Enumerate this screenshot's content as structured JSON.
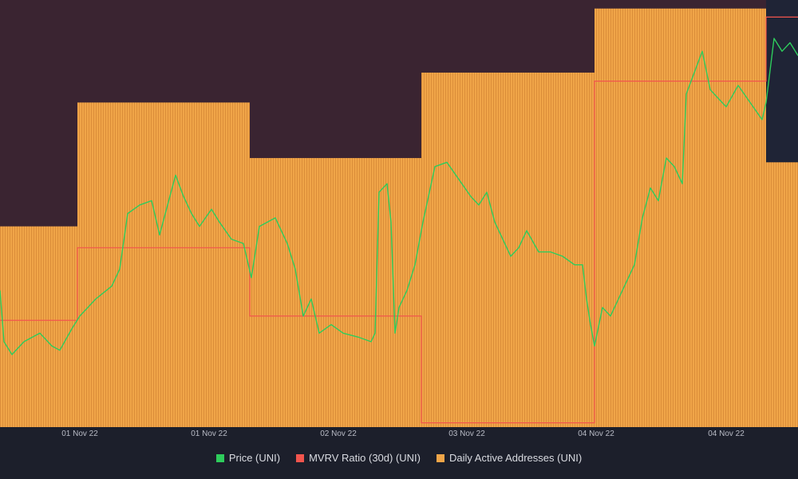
{
  "chart_data": {
    "type": "bar",
    "title": "",
    "x_ticks": [
      "01 Nov 22",
      "01 Nov 22",
      "02 Nov 22",
      "03 Nov 22",
      "04 Nov 22",
      "04 Nov 22"
    ],
    "ylim": [
      0,
      100
    ],
    "series": [
      {
        "name": "Daily Active Addresses (UNI)",
        "color": "#f0a548",
        "kind": "bar",
        "steps": [
          {
            "from": 0,
            "to": 0.097,
            "value": 47
          },
          {
            "from": 0.097,
            "to": 0.313,
            "value": 76
          },
          {
            "from": 0.313,
            "to": 0.528,
            "value": 63
          },
          {
            "from": 0.528,
            "to": 0.745,
            "value": 83
          },
          {
            "from": 0.745,
            "to": 0.96,
            "value": 98
          },
          {
            "from": 0.96,
            "to": 1,
            "value": 62
          }
        ]
      },
      {
        "name": "MVRV Ratio (30d) (UNI)",
        "color": "#f2554d",
        "kind": "step-line",
        "steps": [
          {
            "from": 0,
            "to": 0.097,
            "value": 25
          },
          {
            "from": 0.097,
            "to": 0.313,
            "value": 42
          },
          {
            "from": 0.313,
            "to": 0.528,
            "value": 26
          },
          {
            "from": 0.528,
            "to": 0.745,
            "value": 1
          },
          {
            "from": 0.745,
            "to": 0.96,
            "value": 81
          },
          {
            "from": 0.96,
            "to": 1,
            "value": 96
          }
        ]
      },
      {
        "name": "Price (UNI)",
        "color": "#2ecc5c",
        "kind": "line",
        "points": [
          [
            0,
            32
          ],
          [
            0.005,
            20
          ],
          [
            0.015,
            17
          ],
          [
            0.03,
            20
          ],
          [
            0.05,
            22
          ],
          [
            0.065,
            19
          ],
          [
            0.075,
            18
          ],
          [
            0.09,
            23
          ],
          [
            0.1,
            26
          ],
          [
            0.12,
            30
          ],
          [
            0.14,
            33
          ],
          [
            0.15,
            37
          ],
          [
            0.16,
            50
          ],
          [
            0.175,
            52
          ],
          [
            0.19,
            53
          ],
          [
            0.2,
            45
          ],
          [
            0.21,
            52
          ],
          [
            0.22,
            59
          ],
          [
            0.23,
            54
          ],
          [
            0.24,
            50
          ],
          [
            0.25,
            47
          ],
          [
            0.265,
            51
          ],
          [
            0.275,
            48
          ],
          [
            0.29,
            44
          ],
          [
            0.305,
            43
          ],
          [
            0.315,
            35
          ],
          [
            0.325,
            47
          ],
          [
            0.345,
            49
          ],
          [
            0.36,
            43
          ],
          [
            0.37,
            37
          ],
          [
            0.38,
            26
          ],
          [
            0.39,
            30
          ],
          [
            0.4,
            22
          ],
          [
            0.415,
            24
          ],
          [
            0.43,
            22
          ],
          [
            0.45,
            21
          ],
          [
            0.465,
            20
          ],
          [
            0.47,
            22
          ],
          [
            0.475,
            55
          ],
          [
            0.485,
            57
          ],
          [
            0.49,
            48
          ],
          [
            0.495,
            22
          ],
          [
            0.5,
            28
          ],
          [
            0.51,
            32
          ],
          [
            0.52,
            38
          ],
          [
            0.53,
            48
          ],
          [
            0.545,
            61
          ],
          [
            0.56,
            62
          ],
          [
            0.575,
            58
          ],
          [
            0.59,
            54
          ],
          [
            0.6,
            52
          ],
          [
            0.61,
            55
          ],
          [
            0.62,
            48
          ],
          [
            0.63,
            44
          ],
          [
            0.64,
            40
          ],
          [
            0.65,
            42
          ],
          [
            0.66,
            46
          ],
          [
            0.675,
            41
          ],
          [
            0.69,
            41
          ],
          [
            0.705,
            40
          ],
          [
            0.72,
            38
          ],
          [
            0.73,
            38
          ],
          [
            0.735,
            30
          ],
          [
            0.74,
            24
          ],
          [
            0.745,
            19
          ],
          [
            0.755,
            28
          ],
          [
            0.765,
            26
          ],
          [
            0.775,
            30
          ],
          [
            0.785,
            34
          ],
          [
            0.795,
            38
          ],
          [
            0.805,
            49
          ],
          [
            0.815,
            56
          ],
          [
            0.825,
            53
          ],
          [
            0.835,
            63
          ],
          [
            0.845,
            61
          ],
          [
            0.855,
            57
          ],
          [
            0.86,
            78
          ],
          [
            0.87,
            83
          ],
          [
            0.88,
            88
          ],
          [
            0.89,
            79
          ],
          [
            0.9,
            77
          ],
          [
            0.91,
            75
          ],
          [
            0.925,
            80
          ],
          [
            0.94,
            76
          ],
          [
            0.955,
            72
          ],
          [
            0.96,
            76
          ],
          [
            0.97,
            91
          ],
          [
            0.98,
            88
          ],
          [
            0.99,
            90
          ],
          [
            1,
            87
          ]
        ]
      }
    ],
    "legend": [
      "Price (UNI)",
      "MVRV Ratio (30d) (UNI)",
      "Daily Active Addresses (UNI)"
    ],
    "legend_position": "bottom",
    "grid": false
  },
  "colors": {
    "background": "#1c1f2b",
    "plot_background": "#3a2431",
    "highlight_region": "#1f2436",
    "tick_text": "#b9bcc6"
  }
}
